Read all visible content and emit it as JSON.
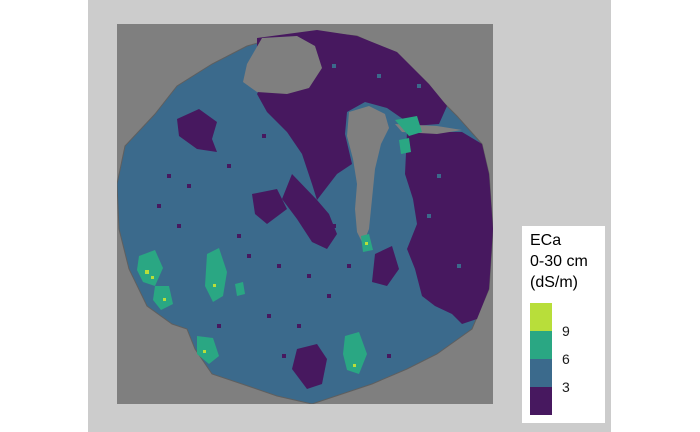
{
  "legend": {
    "title": "ECa\n0-30 cm\n(dS/m)",
    "ticks": [
      "9",
      "6",
      "3"
    ]
  },
  "colors": {
    "background_panel": "#cccccc",
    "no_data": "#7f7f7f",
    "class_low": "#47185f",
    "class_mid": "#3b6a8c",
    "class_high": "#2aa783",
    "class_max": "#b8de3a"
  }
}
